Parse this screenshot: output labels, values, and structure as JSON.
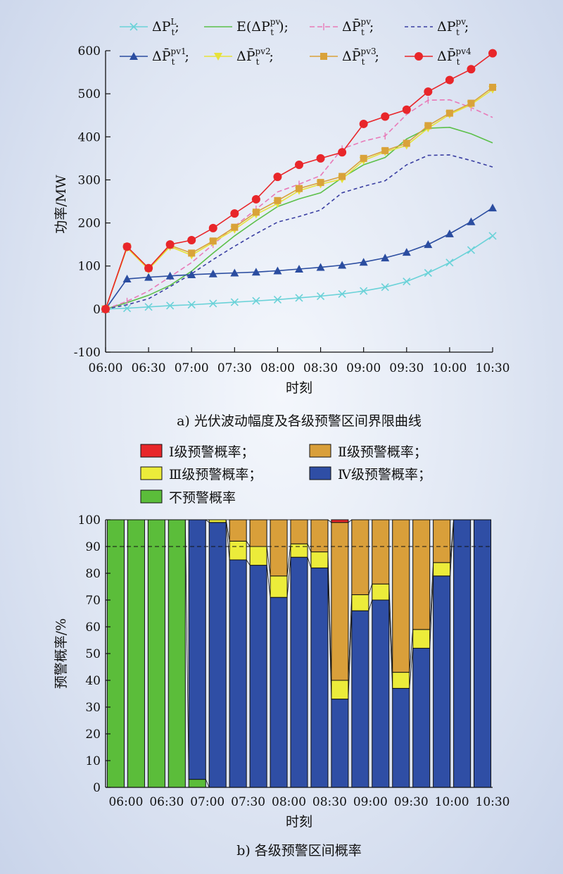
{
  "chart_data": [
    {
      "type": "line",
      "caption": "a) 光伏波动幅度及各级预警区间界限曲线",
      "xlabel": "时刻",
      "ylabel": "功率/MW",
      "ylim": [
        -100,
        600
      ],
      "yticks": [
        "-100",
        "0",
        "100",
        "200",
        "300",
        "400",
        "500",
        "600"
      ],
      "xticks": [
        "06:00",
        "06:30",
        "07:00",
        "07:30",
        "08:00",
        "08:30",
        "09:00",
        "09:30",
        "10:00",
        "10:30"
      ],
      "x": [
        "06:00",
        "06:15",
        "06:30",
        "06:45",
        "07:00",
        "07:15",
        "07:30",
        "07:45",
        "08:00",
        "08:15",
        "08:30",
        "08:45",
        "09:00",
        "09:15",
        "09:30",
        "09:45",
        "10:00",
        "10:15",
        "10:30"
      ],
      "legend_position": "top",
      "grid": false,
      "series": [
        {
          "name": "ΔP_t^L",
          "legend_main": "ΔP",
          "legend_sub": "t",
          "legend_sup": "L",
          "legend_suffix": ";",
          "color": "#6ad2d8",
          "marker": "x",
          "dash": "none",
          "values": [
            0,
            2,
            5,
            8,
            10,
            13,
            16,
            19,
            22,
            26,
            30,
            35,
            42,
            51,
            64,
            84,
            108,
            137,
            170
          ]
        },
        {
          "name": "E(ΔP_t^pv)",
          "legend_main": "E(ΔP",
          "legend_sub": "t",
          "legend_sup": "pv",
          "legend_suffix": ");",
          "color": "#5cc04a",
          "marker": "none",
          "dash": "none",
          "values": [
            0,
            15,
            32,
            55,
            88,
            130,
            170,
            205,
            238,
            256,
            270,
            305,
            335,
            352,
            395,
            420,
            422,
            407,
            386
          ]
        },
        {
          "name": "ΔP̄_t^pv",
          "legend_main": "ΔP̄",
          "legend_sub": "t",
          "legend_sup": "pv",
          "legend_suffix": ";",
          "color": "#e87ab8",
          "marker": "tick",
          "dash": "7,4",
          "values": [
            0,
            18,
            42,
            75,
            108,
            150,
            192,
            232,
            272,
            290,
            310,
            372,
            390,
            402,
            452,
            485,
            486,
            468,
            445
          ]
        },
        {
          "name": "ΔP_t^pv",
          "legend_main": "ΔP",
          "legend_sub": "t",
          "legend_sup": "pv",
          "legend_suffix": ";",
          "color": "#3a3fa2",
          "marker": "none",
          "dash": "5,4",
          "values": [
            0,
            10,
            24,
            52,
            82,
            115,
            146,
            175,
            202,
            215,
            230,
            270,
            285,
            298,
            335,
            357,
            358,
            345,
            330
          ]
        },
        {
          "name": "ΔP̄_t^pv1",
          "legend_main": "ΔP̄",
          "legend_sub": "t",
          "legend_sup": "pv1",
          "legend_suffix": ";",
          "color": "#2b4da0",
          "marker": "triangle",
          "dash": "none",
          "values": [
            0,
            70,
            74,
            77,
            80,
            82,
            84,
            86,
            89,
            93,
            97,
            102,
            109,
            119,
            132,
            150,
            175,
            203,
            235
          ]
        },
        {
          "name": "ΔP̄_t^pv2",
          "legend_main": "ΔP̄",
          "legend_sub": "t",
          "legend_sup": "pv2",
          "legend_suffix": ";",
          "color": "#e7e23a",
          "marker": "triangle-down",
          "dash": "none",
          "values": [
            0,
            142,
            92,
            145,
            125,
            155,
            185,
            220,
            245,
            275,
            290,
            302,
            345,
            365,
            380,
            420,
            452,
            475,
            510
          ]
        },
        {
          "name": "ΔP̄_t^pv3",
          "legend_main": "ΔP̄",
          "legend_sub": "t",
          "legend_sup": "pv3",
          "legend_suffix": ";",
          "color": "#d9a23a",
          "marker": "square",
          "dash": "none",
          "values": [
            0,
            145,
            95,
            148,
            130,
            158,
            190,
            225,
            252,
            280,
            294,
            308,
            350,
            368,
            385,
            426,
            455,
            478,
            515
          ]
        },
        {
          "name": "ΔP̄_t^pv4",
          "legend_main": "ΔP̄",
          "legend_sub": "t",
          "legend_sup": "pv4",
          "legend_suffix": "",
          "color": "#e8262a",
          "marker": "circle",
          "dash": "none",
          "values": [
            0,
            145,
            95,
            150,
            160,
            188,
            222,
            255,
            307,
            335,
            350,
            364,
            430,
            447,
            463,
            505,
            532,
            557,
            594
          ]
        }
      ]
    },
    {
      "type": "bar",
      "stacked": true,
      "caption": "b) 各级预警区间概率",
      "xlabel": "时刻",
      "ylabel": "预警概率/%",
      "ylim": [
        0,
        100
      ],
      "yticks": [
        "0",
        "10",
        "20",
        "30",
        "40",
        "50",
        "60",
        "70",
        "80",
        "90",
        "100"
      ],
      "xticks": [
        "06:00",
        "06:30",
        "07:00",
        "07:30",
        "08:00",
        "08:30",
        "09:00",
        "09:30",
        "10:00",
        "10:30"
      ],
      "reference_line": 90,
      "legend_position": "top",
      "series": [
        {
          "name": "不预警概率",
          "color": "#5bbd3a",
          "values": [
            100,
            100,
            100,
            100,
            3,
            0,
            0,
            0,
            0,
            0,
            0,
            0,
            0,
            0,
            0,
            0,
            0,
            0,
            0
          ]
        },
        {
          "name": "Ⅳ级预警概率；",
          "color": "#2f4ea5",
          "values": [
            0,
            0,
            0,
            0,
            97,
            99,
            85,
            83,
            71,
            86,
            82,
            33,
            66,
            70,
            37,
            52,
            79,
            100,
            100
          ]
        },
        {
          "name": "Ⅲ级预警概率；",
          "color": "#ecec3a",
          "values": [
            0,
            0,
            0,
            0,
            0,
            1,
            7,
            7,
            8,
            5,
            6,
            7,
            6,
            6,
            6,
            7,
            5,
            0,
            0
          ]
        },
        {
          "name": "Ⅱ级预警概率；",
          "color": "#d99f3a",
          "values": [
            0,
            0,
            0,
            0,
            0,
            0,
            8,
            10,
            21,
            9,
            12,
            59,
            28,
            24,
            57,
            41,
            16,
            0,
            0
          ]
        },
        {
          "name": "Ⅰ级预警概率；",
          "color": "#e8262a",
          "values": [
            0,
            0,
            0,
            0,
            0,
            0,
            0,
            0,
            0,
            0,
            0,
            1,
            0,
            0,
            0,
            0,
            0,
            0,
            0
          ]
        }
      ],
      "legend_order": [
        4,
        3,
        2,
        1,
        0
      ]
    }
  ]
}
